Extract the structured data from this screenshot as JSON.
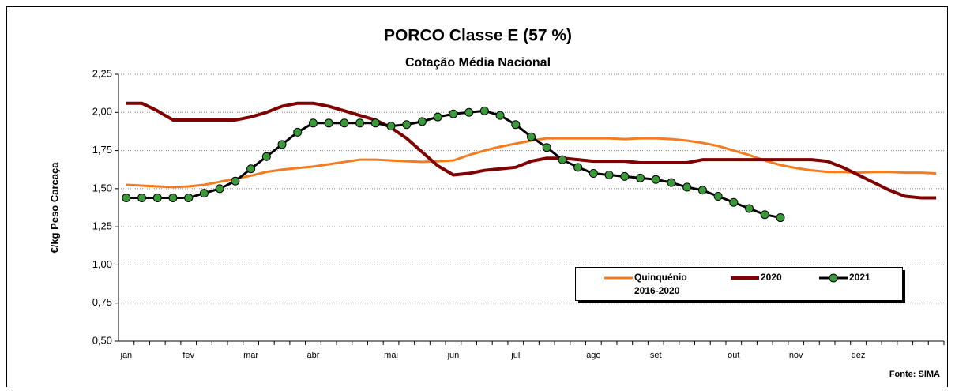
{
  "chart_data": {
    "type": "line",
    "title": "PORCO Classe E (57 %)",
    "subtitle": "Cotação Média Nacional",
    "y_label": "€/kg Peso Carcaça",
    "source": "Fonte: SIMA",
    "categories": [
      "jan",
      null,
      null,
      null,
      "fev",
      null,
      null,
      null,
      "mar",
      null,
      null,
      null,
      "abr",
      null,
      null,
      null,
      null,
      "mai",
      null,
      null,
      null,
      "jun",
      null,
      null,
      null,
      "jul",
      null,
      null,
      null,
      null,
      "ago",
      null,
      null,
      null,
      "set",
      null,
      null,
      null,
      null,
      "out",
      null,
      null,
      null,
      "nov",
      null,
      null,
      null,
      "dez",
      null,
      null,
      null,
      null,
      null
    ],
    "ylim": [
      0.5,
      2.25
    ],
    "yticks": [
      {
        "value": 0.5,
        "label": "0,50"
      },
      {
        "value": 0.75,
        "label": "0,75"
      },
      {
        "value": 1.0,
        "label": "1,00"
      },
      {
        "value": 1.25,
        "label": "1,25"
      },
      {
        "value": 1.5,
        "label": "1,50"
      },
      {
        "value": 1.75,
        "label": "1,75"
      },
      {
        "value": 2.0,
        "label": "2,00"
      },
      {
        "value": 2.25,
        "label": "2,25"
      }
    ],
    "grid": true,
    "series": [
      {
        "name": "Quinquénio 2016-2020",
        "color": "#f47b20",
        "width": 3,
        "values": [
          1.525,
          1.52,
          1.515,
          1.51,
          1.515,
          1.525,
          1.545,
          1.565,
          1.585,
          1.61,
          1.625,
          1.635,
          1.645,
          1.66,
          1.675,
          1.69,
          1.69,
          1.685,
          1.68,
          1.675,
          1.68,
          1.685,
          1.72,
          1.75,
          1.775,
          1.795,
          1.815,
          1.83,
          1.83,
          1.83,
          1.83,
          1.83,
          1.825,
          1.83,
          1.83,
          1.825,
          1.815,
          1.8,
          1.78,
          1.75,
          1.72,
          1.685,
          1.655,
          1.635,
          1.62,
          1.61,
          1.61,
          1.605,
          1.61,
          1.61,
          1.605,
          1.605,
          1.6
        ]
      },
      {
        "name": "2020",
        "color": "#800000",
        "width": 4,
        "values": [
          2.06,
          2.06,
          2.01,
          1.95,
          1.95,
          1.95,
          1.95,
          1.95,
          1.97,
          2.0,
          2.04,
          2.06,
          2.06,
          2.04,
          2.01,
          1.98,
          1.95,
          1.9,
          1.83,
          1.74,
          1.65,
          1.59,
          1.6,
          1.62,
          1.63,
          1.64,
          1.68,
          1.7,
          1.7,
          1.69,
          1.68,
          1.68,
          1.68,
          1.67,
          1.67,
          1.67,
          1.67,
          1.69,
          1.69,
          1.69,
          1.69,
          1.69,
          1.69,
          1.69,
          1.69,
          1.68,
          1.64,
          1.59,
          1.54,
          1.49,
          1.45,
          1.44,
          1.44
        ]
      },
      {
        "name": "2021",
        "color": "#000000",
        "marker_color": "#3a9a3a",
        "width": 3,
        "values": [
          1.44,
          1.44,
          1.44,
          1.44,
          1.44,
          1.47,
          1.5,
          1.55,
          1.63,
          1.71,
          1.79,
          1.87,
          1.93,
          1.93,
          1.93,
          1.93,
          1.93,
          1.91,
          1.92,
          1.94,
          1.97,
          1.99,
          2.0,
          2.01,
          1.98,
          1.92,
          1.84,
          1.77,
          1.69,
          1.64,
          1.6,
          1.59,
          1.58,
          1.57,
          1.56,
          1.54,
          1.51,
          1.49,
          1.45,
          1.41,
          1.37,
          1.33,
          1.31,
          null,
          null,
          null,
          null,
          null,
          null,
          null,
          null,
          null,
          null
        ]
      }
    ]
  }
}
